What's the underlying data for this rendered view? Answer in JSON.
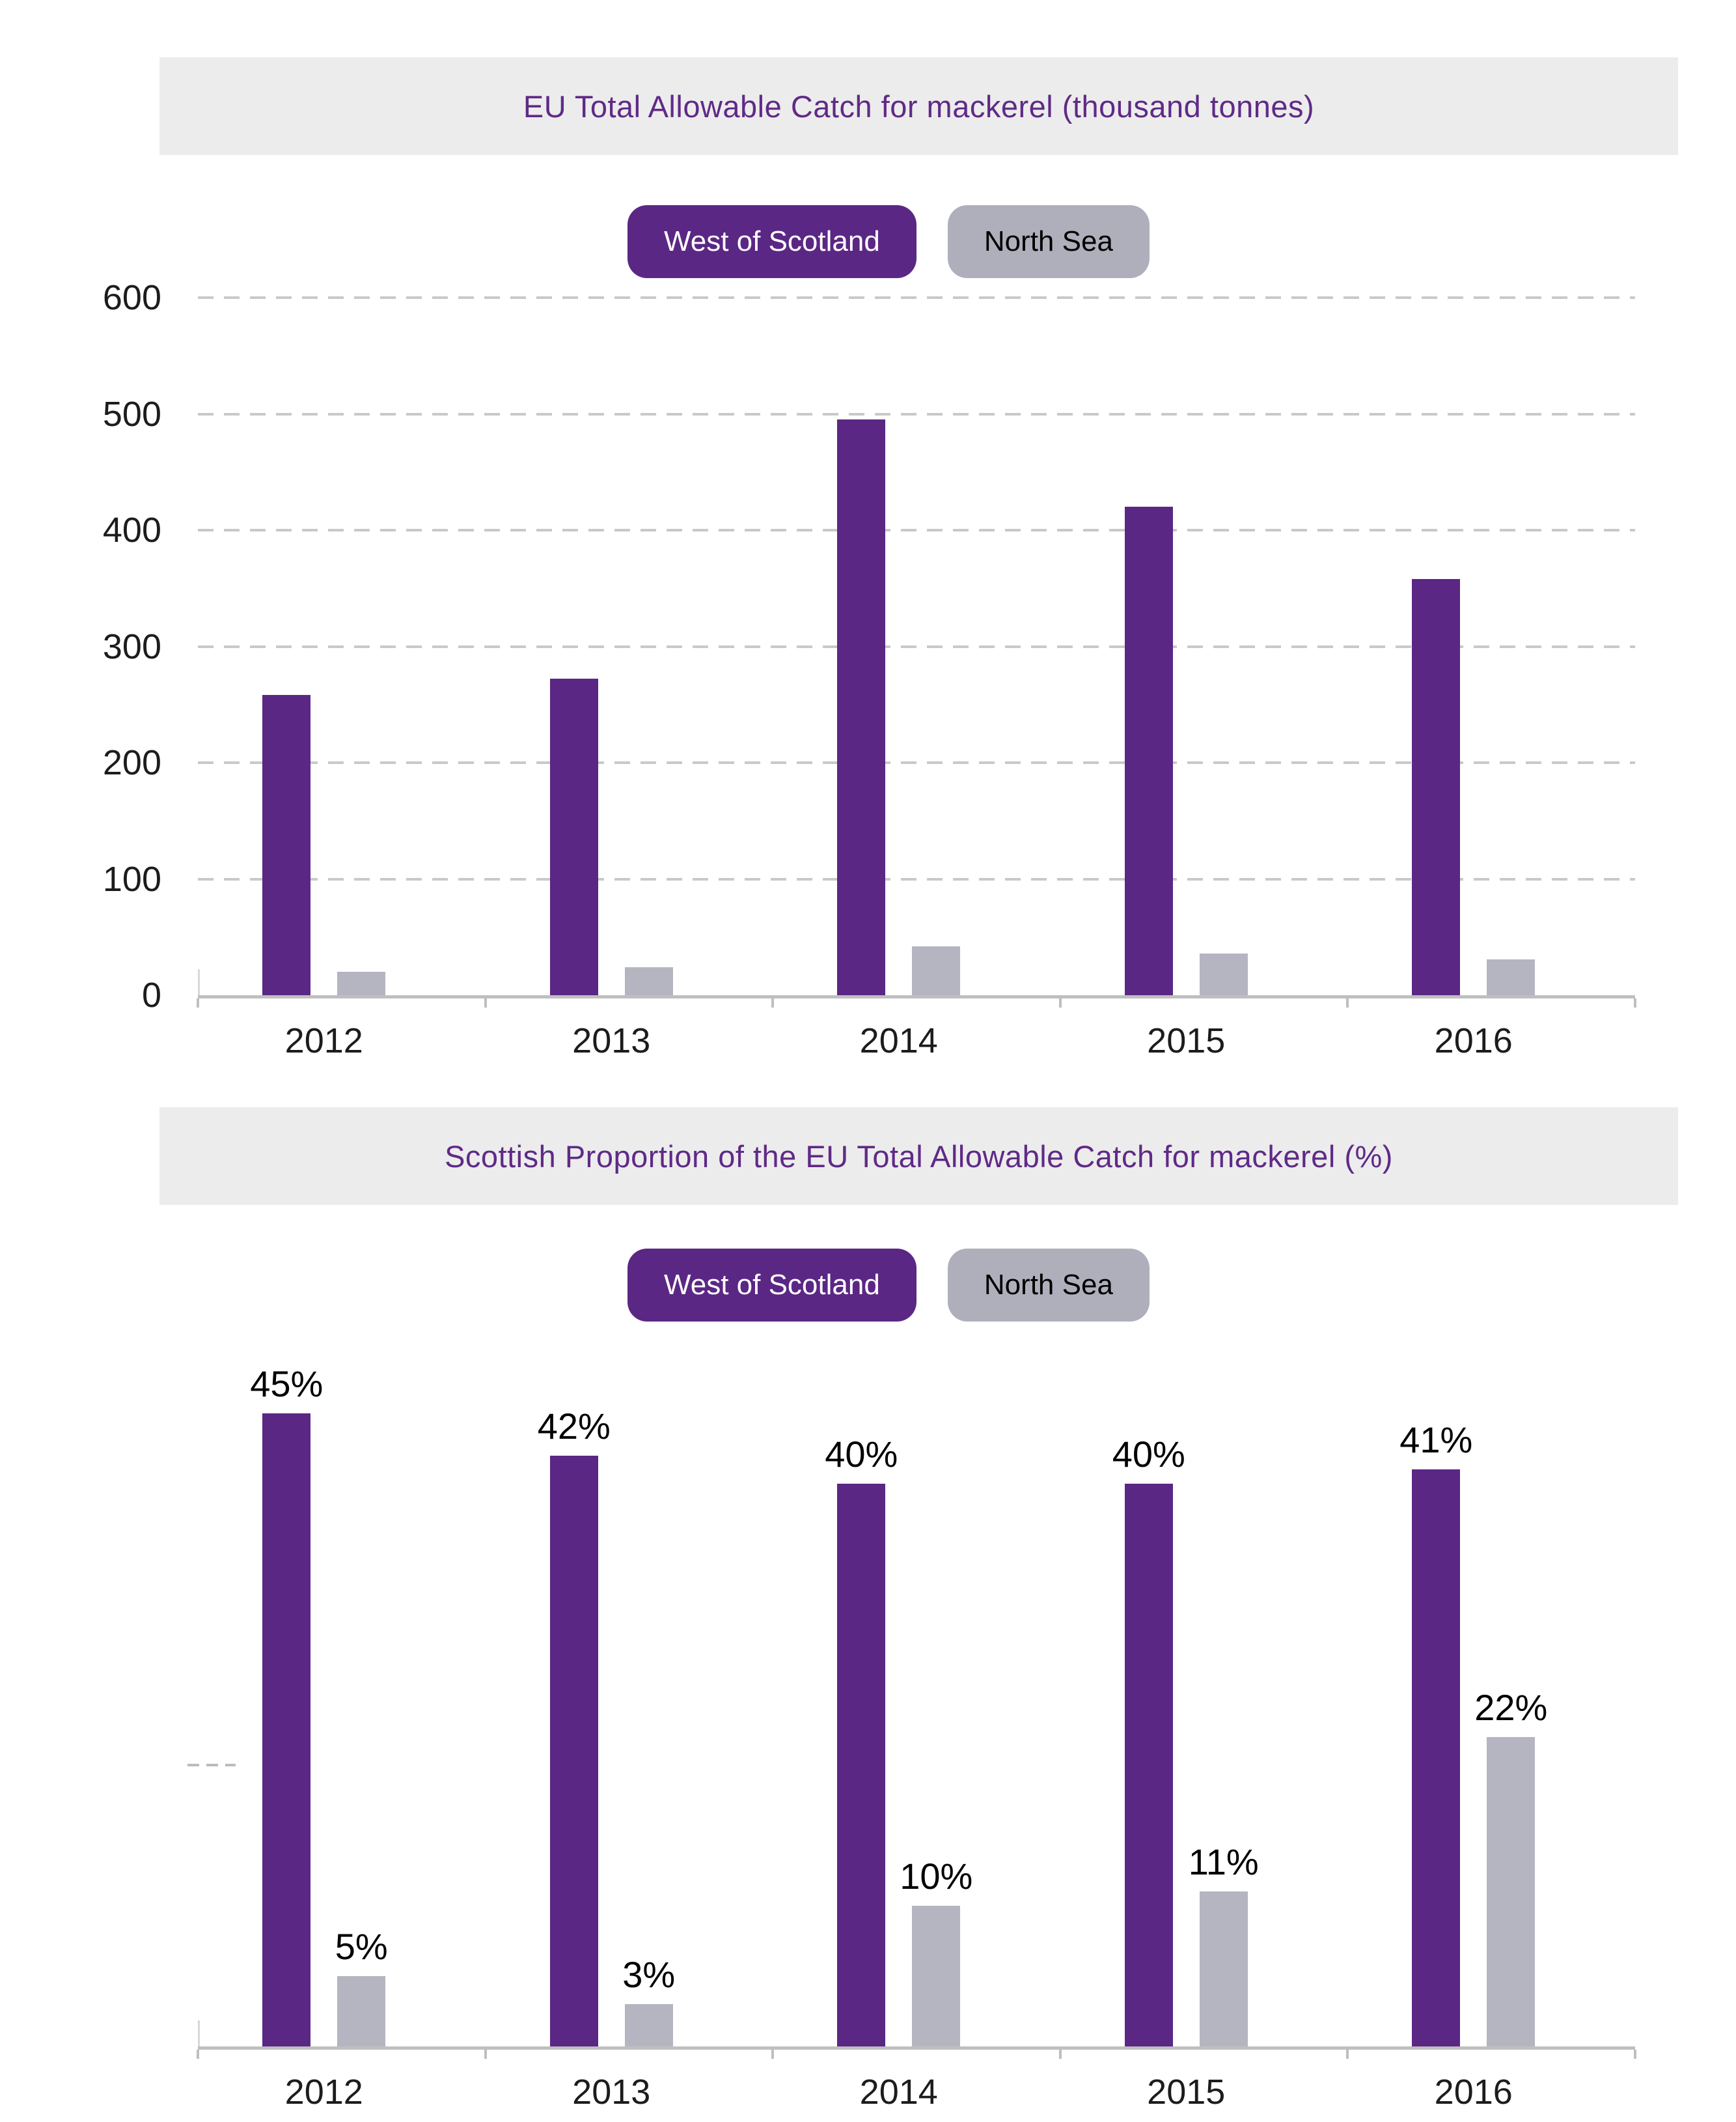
{
  "colors": {
    "purple": "#5b2784",
    "gray": "#b5b5c1",
    "legend_gray": "#afafbc",
    "title_text": "#5f2a87",
    "band_background": "#ececec",
    "gridline": "#c9c9c9",
    "axis_line": "#bfbfbf",
    "axis_text": "#1c1c1c",
    "value_label_text": "#000000"
  },
  "legend": {
    "series1": "West of Scotland",
    "series2": "North Sea"
  },
  "chart_data": [
    {
      "type": "bar",
      "title": "EU Total Allowable Catch for mackerel (thousand tonnes)",
      "categories": [
        "2012",
        "2013",
        "2014",
        "2015",
        "2016"
      ],
      "series": [
        {
          "name": "West of Scotland",
          "color_key": "purple",
          "values": [
            258,
            272,
            495,
            420,
            358
          ]
        },
        {
          "name": "North Sea",
          "color_key": "gray",
          "values": [
            20,
            24,
            42,
            36,
            31
          ]
        }
      ],
      "ylabel": "",
      "xlabel": "",
      "ylim": [
        0,
        600
      ],
      "yticks": [
        0,
        100,
        200,
        300,
        400,
        500,
        600
      ],
      "grid": "horizontal-dashed",
      "value_labels": false,
      "legend_position": "top-center"
    },
    {
      "type": "bar",
      "title": "Scottish Proportion of the EU Total Allowable Catch for mackerel (%)",
      "categories": [
        "2012",
        "2013",
        "2014",
        "2015",
        "2016"
      ],
      "series": [
        {
          "name": "West of Scotland",
          "color_key": "purple",
          "values": [
            45,
            42,
            40,
            40,
            41
          ],
          "labels": [
            "45%",
            "42%",
            "40%",
            "40%",
            "41%"
          ]
        },
        {
          "name": "North Sea",
          "color_key": "gray",
          "values": [
            5,
            3,
            10,
            11,
            22
          ],
          "labels": [
            "5%",
            "3%",
            "10%",
            "11%",
            "22%"
          ]
        }
      ],
      "ylabel": "",
      "xlabel": "",
      "ylim": [
        0,
        47
      ],
      "yticks": [],
      "grid": "none-except-partial-20pct-fragment-at-left",
      "value_labels": true,
      "legend_position": "top-center"
    }
  ]
}
